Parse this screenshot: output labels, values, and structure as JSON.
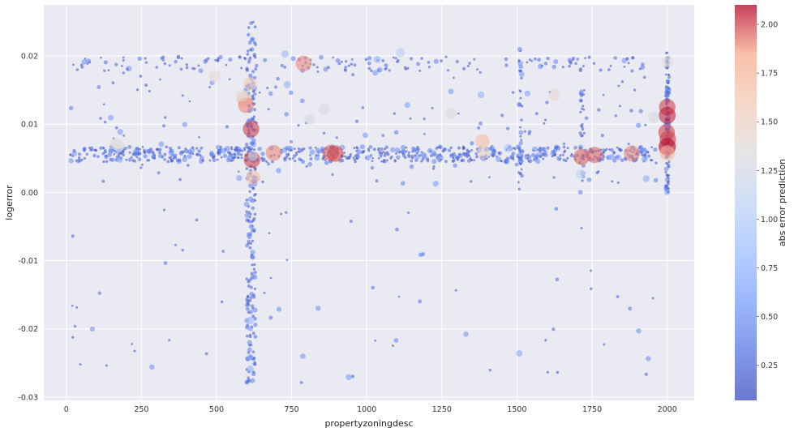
{
  "chart_data": {
    "type": "scatter",
    "title": "",
    "xlabel": "propertyzoningdesc",
    "ylabel": "logerror",
    "xlim": [
      -75,
      2090
    ],
    "ylim": [
      -0.0305,
      0.0275
    ],
    "xticks": [
      0,
      250,
      500,
      750,
      1000,
      1250,
      1500,
      1750,
      2000
    ],
    "xtick_labels": [
      "0",
      "250",
      "500",
      "750",
      "1000",
      "1250",
      "1500",
      "1750",
      "2000"
    ],
    "yticks": [
      0.02,
      0.01,
      0.0,
      -0.01,
      -0.02,
      -0.03
    ],
    "ytick_labels": [
      "0.02",
      "0.01",
      "0.00",
      "-0.01",
      "-0.02",
      "-0.03"
    ],
    "grid": true,
    "colormap": "coolwarm",
    "colorbar": {
      "label": "abs error prediction",
      "range": [
        0.07,
        2.1
      ],
      "ticks": [
        2.0,
        1.75,
        1.5,
        1.25,
        1.0,
        0.75,
        0.5,
        0.25
      ],
      "tick_labels": [
        "2.00",
        "1.75",
        "1.50",
        "1.25",
        "1.00",
        "0.75",
        "0.50",
        "0.25"
      ]
    },
    "points_note": "color and size encode abs error prediction",
    "points": [
      [
        880,
        0.0058,
        1.95
      ],
      [
        895,
        0.0057,
        2.0
      ],
      [
        790,
        0.0189,
        1.9
      ],
      [
        690,
        0.0058,
        1.9
      ],
      [
        615,
        0.0093,
        2.0
      ],
      [
        618,
        0.0048,
        2.0
      ],
      [
        622,
        0.0022,
        1.7
      ],
      [
        592,
        0.0136,
        1.75
      ],
      [
        598,
        0.0128,
        1.9
      ],
      [
        612,
        0.0159,
        1.6
      ],
      [
        585,
        0.0142,
        1.4
      ],
      [
        1715,
        0.0052,
        1.95
      ],
      [
        1758,
        0.0055,
        1.95
      ],
      [
        1882,
        0.0057,
        1.9
      ],
      [
        1385,
        0.0075,
        1.7
      ],
      [
        1388,
        0.0058,
        1.5
      ],
      [
        2000,
        0.0125,
        2.0
      ],
      [
        2000,
        0.0113,
        2.05
      ],
      [
        1998,
        0.0088,
        2.0
      ],
      [
        2002,
        0.0078,
        2.0
      ],
      [
        2000,
        0.0067,
        2.1
      ],
      [
        2000,
        0.0058,
        1.8
      ],
      [
        2002,
        0.0192,
        1.4
      ],
      [
        1955,
        0.011,
        1.3
      ],
      [
        165,
        0.0071,
        1.4
      ],
      [
        175,
        0.0068,
        1.3
      ],
      [
        810,
        0.0107,
        1.25
      ],
      [
        858,
        0.0122,
        1.3
      ],
      [
        1280,
        0.0116,
        1.35
      ],
      [
        1625,
        0.0143,
        1.4
      ],
      [
        495,
        0.017,
        1.4
      ],
      [
        1712,
        0.0027,
        1.05
      ],
      [
        1112,
        0.0205,
        1.0
      ],
      [
        728,
        0.0203,
        0.8
      ],
      [
        735,
        0.0158,
        0.75
      ],
      [
        612,
        -0.0188,
        0.8
      ],
      [
        612,
        -0.0259,
        0.75
      ],
      [
        1508,
        -0.0236,
        0.65
      ],
      [
        1930,
        0.002,
        0.7
      ],
      [
        1925,
        0.0049,
        0.65
      ],
      [
        620,
        0.0053,
        1.1
      ],
      [
        1470,
        0.0065,
        0.9
      ],
      [
        1135,
        0.0128,
        0.6
      ],
      [
        1035,
        0.0195,
        0.75
      ],
      [
        285,
        -0.0256,
        0.5
      ],
      [
        940,
        -0.0271,
        0.6
      ],
      [
        1905,
        -0.0203,
        0.5
      ],
      [
        1330,
        -0.0208,
        0.5
      ],
      [
        838,
        -0.017,
        0.5
      ],
      [
        1380,
        0.0143,
        0.7
      ],
      [
        1535,
        0.0145,
        0.6
      ],
      [
        1280,
        0.0148,
        0.55
      ],
      [
        575,
        0.0021,
        0.6
      ],
      [
        1098,
        0.0088,
        0.4
      ],
      [
        680,
        0.0145,
        0.4
      ],
      [
        735,
        0.0065,
        0.45
      ]
    ]
  }
}
